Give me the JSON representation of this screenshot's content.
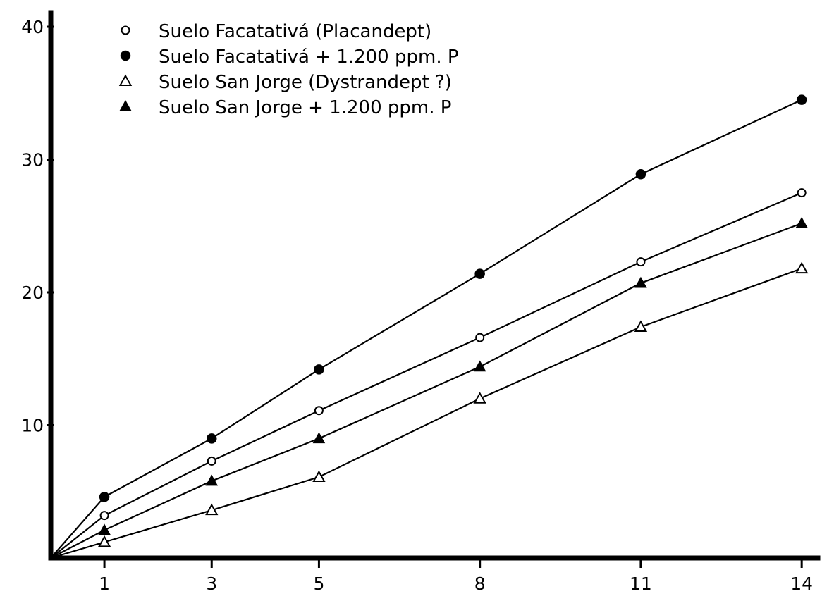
{
  "chart_data": {
    "type": "line",
    "title": "",
    "xlabel": "",
    "ylabel": "",
    "x": [
      0,
      1,
      3,
      5,
      8,
      11,
      14
    ],
    "x_ticks": [
      1,
      3,
      5,
      8,
      11,
      14
    ],
    "y_ticks": [
      10,
      20,
      30,
      40
    ],
    "xlim": [
      0,
      14.3
    ],
    "ylim": [
      0,
      40
    ],
    "grid": false,
    "legend_position": "top-left",
    "series": [
      {
        "name": "Suelo Facatativá (Placandept)",
        "marker": "open-circle",
        "values": [
          0,
          3.2,
          7.3,
          11.1,
          16.6,
          22.3,
          27.5
        ]
      },
      {
        "name": "Suelo Facatativá + 1.200 ppm. P",
        "marker": "filled-circle",
        "values": [
          0,
          4.6,
          9.0,
          14.2,
          21.4,
          28.9,
          34.5
        ]
      },
      {
        "name": "Suelo San Jorge (Dystrandept ?)",
        "marker": "open-triangle",
        "values": [
          0,
          1.2,
          3.6,
          6.1,
          12.0,
          17.4,
          21.8
        ]
      },
      {
        "name": "Suelo San Jorge + 1.200 ppm. P",
        "marker": "filled-triangle",
        "values": [
          0,
          2.1,
          5.8,
          9.0,
          14.4,
          20.7,
          25.2
        ]
      }
    ]
  }
}
